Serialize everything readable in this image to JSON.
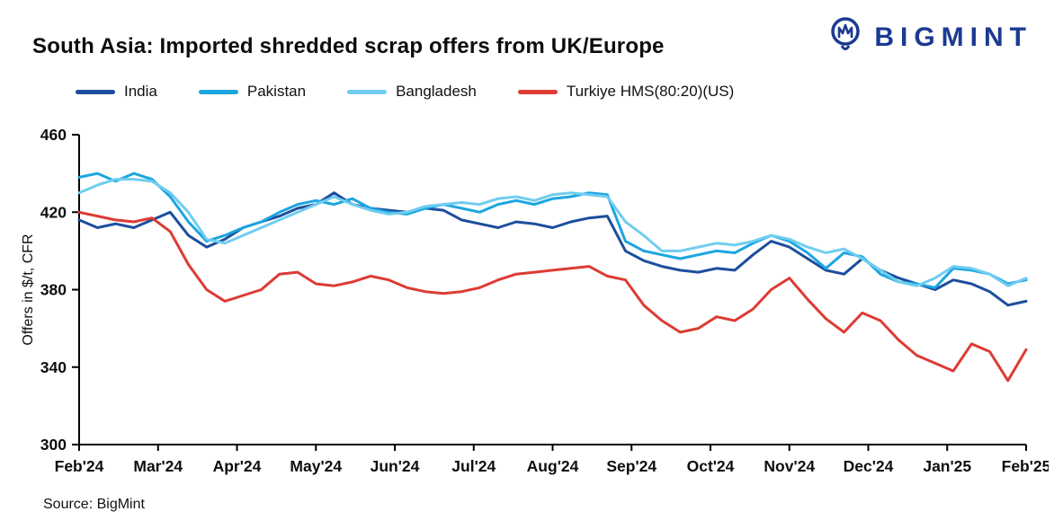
{
  "header": {
    "title": "South Asia: Imported shredded scrap offers from UK/Europe",
    "brand": "BIGMINT"
  },
  "source": "Source: BigMint",
  "chart_data": {
    "type": "line",
    "title": "South Asia: Imported shredded scrap offers from UK/Europe",
    "xlabel": "",
    "ylabel": "Offers in $/t, CFR",
    "ylim": [
      300,
      460
    ],
    "yticks": [
      300,
      340,
      380,
      420,
      460
    ],
    "grid": false,
    "legend_position": "top",
    "x_tick_labels": [
      "Feb'24",
      "Mar'24",
      "Apr'24",
      "May'24",
      "Jun'24",
      "Jul'24",
      "Aug'24",
      "Sep'24",
      "Oct'24",
      "Nov'24",
      "Dec'24",
      "Jan'25",
      "Feb'25"
    ],
    "series": [
      {
        "name": "India",
        "color": "#1c4e9d",
        "values": [
          416,
          412,
          414,
          412,
          416,
          420,
          408,
          402,
          406,
          412,
          415,
          418,
          422,
          424,
          430,
          424,
          422,
          421,
          420,
          422,
          421,
          416,
          414,
          412,
          415,
          414,
          412,
          415,
          417,
          418,
          400,
          395,
          392,
          390,
          389,
          391,
          390,
          398,
          405,
          402,
          396,
          390,
          388,
          396,
          390,
          386,
          383,
          380,
          385,
          383,
          379,
          372,
          374
        ]
      },
      {
        "name": "Pakistan",
        "color": "#1ca6e0",
        "values": [
          438,
          440,
          436,
          440,
          437,
          428,
          415,
          405,
          408,
          412,
          415,
          420,
          424,
          426,
          424,
          427,
          422,
          420,
          419,
          422,
          424,
          422,
          420,
          424,
          426,
          424,
          427,
          428,
          430,
          429,
          405,
          400,
          398,
          396,
          398,
          400,
          399,
          404,
          408,
          405,
          399,
          391,
          399,
          397,
          388,
          384,
          383,
          381,
          391,
          390,
          388,
          383,
          385
        ]
      },
      {
        "name": "Bangladesh",
        "color": "#70cdf0",
        "values": [
          430,
          434,
          437,
          437,
          436,
          430,
          420,
          406,
          404,
          408,
          412,
          416,
          420,
          424,
          428,
          424,
          421,
          419,
          420,
          423,
          424,
          425,
          424,
          427,
          428,
          426,
          429,
          430,
          429,
          428,
          415,
          408,
          400,
          400,
          402,
          404,
          403,
          405,
          408,
          406,
          402,
          399,
          401,
          396,
          390,
          384,
          382,
          386,
          392,
          391,
          388,
          382,
          386
        ]
      },
      {
        "name": "Turkiye HMS(80:20)(US)",
        "color": "#dd3b34",
        "values": [
          420,
          418,
          416,
          415,
          417,
          410,
          393,
          380,
          374,
          377,
          380,
          388,
          389,
          383,
          382,
          384,
          387,
          385,
          381,
          379,
          378,
          379,
          381,
          385,
          388,
          389,
          390,
          391,
          392,
          387,
          385,
          372,
          364,
          358,
          360,
          366,
          364,
          370,
          380,
          386,
          375,
          365,
          358,
          368,
          364,
          354,
          346,
          342,
          338,
          352,
          348,
          333,
          349
        ]
      }
    ]
  }
}
